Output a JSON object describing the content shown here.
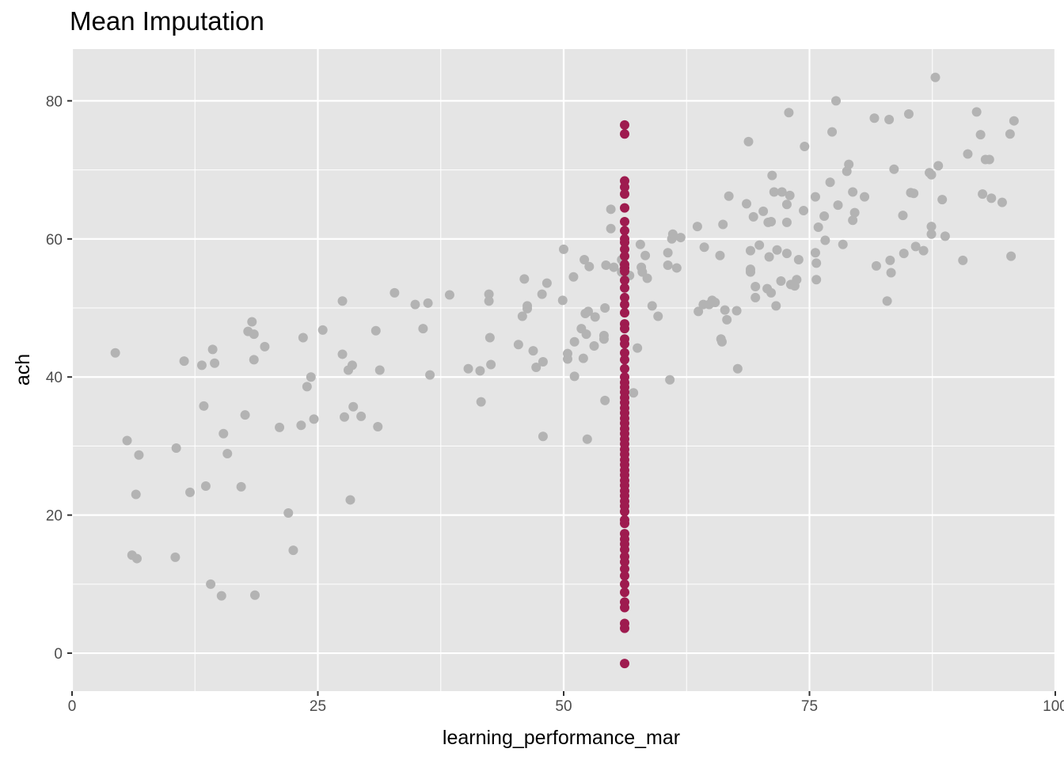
{
  "chart_data": {
    "type": "scatter",
    "title": "Mean Imputation",
    "xlabel": "learning_performance_mar",
    "ylabel": "ach",
    "xlim": [
      0,
      100
    ],
    "ylim": [
      -5.5,
      87.5
    ],
    "xticks": [
      0,
      25,
      50,
      75,
      100
    ],
    "yticks": [
      0,
      20,
      40,
      60,
      80
    ],
    "grid": true,
    "legend": "none",
    "colors": {
      "panel_background": "#e5e5e5",
      "grid": "#ffffff",
      "observed": "#b3b3b3",
      "imputed": "#9e1b4f"
    },
    "series": [
      {
        "role": "observed",
        "color": "#b3b3b3",
        "points": [
          [
            4.4,
            43.5
          ],
          [
            5.6,
            30.8
          ],
          [
            6.1,
            14.2
          ],
          [
            6.5,
            23
          ],
          [
            6.6,
            13.7
          ],
          [
            6.8,
            28.7
          ],
          [
            10.5,
            13.9
          ],
          [
            10.6,
            29.7
          ],
          [
            11.4,
            42.3
          ],
          [
            12.0,
            23.3
          ],
          [
            13.2,
            41.7
          ],
          [
            13.4,
            35.8
          ],
          [
            13.6,
            24.2
          ],
          [
            14.1,
            10
          ],
          [
            14.3,
            44
          ],
          [
            14.5,
            42
          ],
          [
            15.2,
            8.3
          ],
          [
            15.4,
            31.8
          ],
          [
            15.8,
            28.9
          ],
          [
            17.2,
            24.1
          ],
          [
            17.6,
            34.5
          ],
          [
            17.9,
            46.6
          ],
          [
            18.3,
            48
          ],
          [
            18.5,
            46.2
          ],
          [
            18.5,
            42.5
          ],
          [
            18.6,
            8.4
          ],
          [
            19.6,
            44.4
          ],
          [
            21.1,
            32.7
          ],
          [
            22.0,
            20.3
          ],
          [
            22.5,
            14.9
          ],
          [
            23.3,
            33
          ],
          [
            23.5,
            45.7
          ],
          [
            23.9,
            38.6
          ],
          [
            24.3,
            40
          ],
          [
            24.6,
            33.9
          ],
          [
            25.5,
            46.8
          ],
          [
            27.5,
            51
          ],
          [
            27.5,
            43.3
          ],
          [
            27.7,
            34.2
          ],
          [
            28.1,
            41
          ],
          [
            28.3,
            22.2
          ],
          [
            28.5,
            41.7
          ],
          [
            28.6,
            35.7
          ],
          [
            29.4,
            34.3
          ],
          [
            30.9,
            46.7
          ],
          [
            31.1,
            32.8
          ],
          [
            31.3,
            41
          ],
          [
            32.8,
            52.2
          ],
          [
            34.9,
            50.5
          ],
          [
            35.7,
            47
          ],
          [
            36.2,
            50.7
          ],
          [
            36.4,
            40.3
          ],
          [
            38.4,
            51.9
          ],
          [
            40.3,
            41.2
          ],
          [
            41.5,
            40.9
          ],
          [
            41.6,
            36.4
          ],
          [
            42.4,
            52
          ],
          [
            42.4,
            51
          ],
          [
            42.5,
            45.7
          ],
          [
            42.6,
            41.8
          ],
          [
            45.4,
            44.7
          ],
          [
            45.8,
            48.8
          ],
          [
            46.0,
            54.2
          ],
          [
            46.3,
            50.3
          ],
          [
            46.3,
            49.9
          ],
          [
            46.9,
            43.8
          ],
          [
            47.2,
            41.4
          ],
          [
            47.8,
            52
          ],
          [
            47.9,
            31.4
          ],
          [
            47.9,
            42.2
          ],
          [
            48.3,
            53.6
          ],
          [
            49.9,
            51.1
          ],
          [
            50.0,
            58.5
          ],
          [
            50.4,
            42.6
          ],
          [
            50.4,
            43.4
          ],
          [
            51.0,
            54.5
          ],
          [
            51.1,
            40.1
          ],
          [
            51.1,
            45.1
          ],
          [
            51.8,
            47
          ],
          [
            52.0,
            42.7
          ],
          [
            52.1,
            57
          ],
          [
            52.2,
            49.2
          ],
          [
            52.3,
            46.2
          ],
          [
            52.4,
            31
          ],
          [
            52.5,
            49.5
          ],
          [
            52.6,
            56
          ],
          [
            53.1,
            44.5
          ],
          [
            53.2,
            48.7
          ],
          [
            54.1,
            45.5
          ],
          [
            54.1,
            46
          ],
          [
            54.2,
            36.6
          ],
          [
            54.2,
            50
          ],
          [
            54.3,
            56.2
          ],
          [
            54.8,
            64.3
          ],
          [
            54.8,
            61.5
          ],
          [
            55.1,
            55.9
          ],
          [
            55.9,
            57
          ],
          [
            55.9,
            55.2
          ],
          [
            56.1,
            56.5
          ],
          [
            56.7,
            54.7
          ],
          [
            57.1,
            37.7
          ],
          [
            57.5,
            44.2
          ],
          [
            57.8,
            59.2
          ],
          [
            57.9,
            55.9
          ],
          [
            58.0,
            55.2
          ],
          [
            58.3,
            57.6
          ],
          [
            58.5,
            54.3
          ],
          [
            59.0,
            50.3
          ],
          [
            59.6,
            48.8
          ],
          [
            60.6,
            58
          ],
          [
            60.6,
            56.2
          ],
          [
            60.8,
            39.6
          ],
          [
            61.0,
            60
          ],
          [
            61.1,
            60.7
          ],
          [
            61.5,
            55.8
          ],
          [
            61.9,
            60.2
          ],
          [
            63.6,
            61.8
          ],
          [
            63.7,
            49.5
          ],
          [
            64.2,
            50.5
          ],
          [
            64.3,
            58.8
          ],
          [
            64.8,
            50.5
          ],
          [
            65.1,
            51.1
          ],
          [
            65.4,
            50.8
          ],
          [
            65.9,
            57.6
          ],
          [
            66.0,
            45.5
          ],
          [
            66.1,
            45.1
          ],
          [
            66.2,
            62.1
          ],
          [
            66.4,
            49.7
          ],
          [
            66.6,
            48.3
          ],
          [
            66.8,
            66.2
          ],
          [
            67.6,
            49.6
          ],
          [
            67.7,
            41.2
          ],
          [
            68.6,
            65.1
          ],
          [
            68.8,
            74.1
          ],
          [
            69.0,
            55.6
          ],
          [
            69.0,
            55.2
          ],
          [
            69.0,
            58.3
          ],
          [
            69.3,
            63.2
          ],
          [
            69.5,
            53.1
          ],
          [
            69.5,
            51.5
          ],
          [
            69.9,
            59.1
          ],
          [
            70.3,
            64
          ],
          [
            70.7,
            52.8
          ],
          [
            70.8,
            62.4
          ],
          [
            70.9,
            57.4
          ],
          [
            71.1,
            62.5
          ],
          [
            71.1,
            52.2
          ],
          [
            71.2,
            69.2
          ],
          [
            71.4,
            66.8
          ],
          [
            71.6,
            50.3
          ],
          [
            71.7,
            58.4
          ],
          [
            72.1,
            53.9
          ],
          [
            72.2,
            66.8
          ],
          [
            72.7,
            57.9
          ],
          [
            72.7,
            65
          ],
          [
            72.7,
            62.4
          ],
          [
            72.9,
            78.3
          ],
          [
            73.0,
            66.3
          ],
          [
            73.1,
            53.4
          ],
          [
            73.5,
            53.2
          ],
          [
            73.7,
            54.1
          ],
          [
            73.9,
            57
          ],
          [
            74.4,
            64.1
          ],
          [
            74.5,
            73.4
          ],
          [
            75.6,
            66.1
          ],
          [
            75.6,
            58
          ],
          [
            75.7,
            54.1
          ],
          [
            75.7,
            56.5
          ],
          [
            75.9,
            61.7
          ],
          [
            76.5,
            63.3
          ],
          [
            76.6,
            59.8
          ],
          [
            77.1,
            68.2
          ],
          [
            77.3,
            75.5
          ],
          [
            77.7,
            80
          ],
          [
            77.9,
            64.9
          ],
          [
            78.4,
            59.2
          ],
          [
            78.8,
            69.8
          ],
          [
            79.0,
            70.8
          ],
          [
            79.4,
            62.7
          ],
          [
            79.4,
            66.8
          ],
          [
            79.6,
            63.8
          ],
          [
            80.6,
            66.1
          ],
          [
            81.6,
            77.5
          ],
          [
            81.8,
            56.1
          ],
          [
            82.9,
            51
          ],
          [
            83.1,
            77.3
          ],
          [
            83.2,
            56.9
          ],
          [
            83.3,
            55.1
          ],
          [
            83.6,
            70.1
          ],
          [
            84.5,
            63.4
          ],
          [
            84.6,
            57.9
          ],
          [
            85.1,
            78.1
          ],
          [
            85.3,
            66.7
          ],
          [
            85.6,
            66.6
          ],
          [
            85.8,
            58.9
          ],
          [
            86.6,
            58.3
          ],
          [
            87.2,
            69.6
          ],
          [
            87.4,
            69.3
          ],
          [
            87.4,
            60.7
          ],
          [
            87.4,
            61.8
          ],
          [
            87.8,
            83.4
          ],
          [
            88.1,
            70.6
          ],
          [
            88.5,
            65.7
          ],
          [
            88.8,
            60.4
          ],
          [
            90.6,
            56.9
          ],
          [
            91.1,
            72.3
          ],
          [
            92.0,
            78.4
          ],
          [
            92.4,
            75.1
          ],
          [
            92.6,
            66.5
          ],
          [
            92.9,
            71.5
          ],
          [
            93.3,
            71.5
          ],
          [
            93.5,
            65.9
          ],
          [
            94.6,
            65.3
          ],
          [
            95.4,
            75.2
          ],
          [
            95.5,
            57.5
          ],
          [
            95.8,
            77.1
          ]
        ]
      },
      {
        "role": "imputed",
        "color": "#9e1b4f",
        "points": [
          [
            56.2,
            76.5
          ],
          [
            56.2,
            75.2
          ],
          [
            56.2,
            68.4
          ],
          [
            56.2,
            67.5
          ],
          [
            56.2,
            66.5
          ],
          [
            56.2,
            64.5
          ],
          [
            56.2,
            62.5
          ],
          [
            56.2,
            61.2
          ],
          [
            56.2,
            60
          ],
          [
            56.2,
            59.5
          ],
          [
            56.2,
            58.5
          ],
          [
            56.2,
            57.5
          ],
          [
            56.2,
            56.3
          ],
          [
            56.2,
            55.8
          ],
          [
            56.2,
            55.3
          ],
          [
            56.2,
            54
          ],
          [
            56.2,
            52.9
          ],
          [
            56.2,
            51.5
          ],
          [
            56.2,
            50.5
          ],
          [
            56.2,
            49.3
          ],
          [
            56.2,
            47.7
          ],
          [
            56.2,
            47
          ],
          [
            56.2,
            45.5
          ],
          [
            56.2,
            44.8
          ],
          [
            56.2,
            43.5
          ],
          [
            56.2,
            42.5
          ],
          [
            56.2,
            41.2
          ],
          [
            56.2,
            40
          ],
          [
            56.2,
            39.2
          ],
          [
            56.2,
            38.5
          ],
          [
            56.2,
            37.8
          ],
          [
            56.2,
            37
          ],
          [
            56.2,
            36.3
          ],
          [
            56.2,
            35.5
          ],
          [
            56.2,
            34.8
          ],
          [
            56.2,
            34
          ],
          [
            56.2,
            33.3
          ],
          [
            56.2,
            32.5
          ],
          [
            56.2,
            31.8
          ],
          [
            56.2,
            31
          ],
          [
            56.2,
            30.3
          ],
          [
            56.2,
            29.5
          ],
          [
            56.2,
            28.8
          ],
          [
            56.2,
            28
          ],
          [
            56.2,
            27.3
          ],
          [
            56.2,
            26.5
          ],
          [
            56.2,
            25.8
          ],
          [
            56.2,
            25
          ],
          [
            56.2,
            24.3
          ],
          [
            56.2,
            23.5
          ],
          [
            56.2,
            22.8
          ],
          [
            56.2,
            22
          ],
          [
            56.2,
            21.3
          ],
          [
            56.2,
            20.5
          ],
          [
            56.2,
            19.3
          ],
          [
            56.2,
            18.8
          ],
          [
            56.2,
            17.3
          ],
          [
            56.2,
            16.5
          ],
          [
            56.2,
            15.8
          ],
          [
            56.2,
            15
          ],
          [
            56.2,
            14
          ],
          [
            56.2,
            13.2
          ],
          [
            56.2,
            12.2
          ],
          [
            56.2,
            11.2
          ],
          [
            56.2,
            10
          ],
          [
            56.2,
            8.8
          ],
          [
            56.2,
            7.4
          ],
          [
            56.2,
            6.6
          ],
          [
            56.2,
            4.3
          ],
          [
            56.2,
            3.6
          ],
          [
            56.2,
            -1.5
          ]
        ]
      }
    ]
  }
}
